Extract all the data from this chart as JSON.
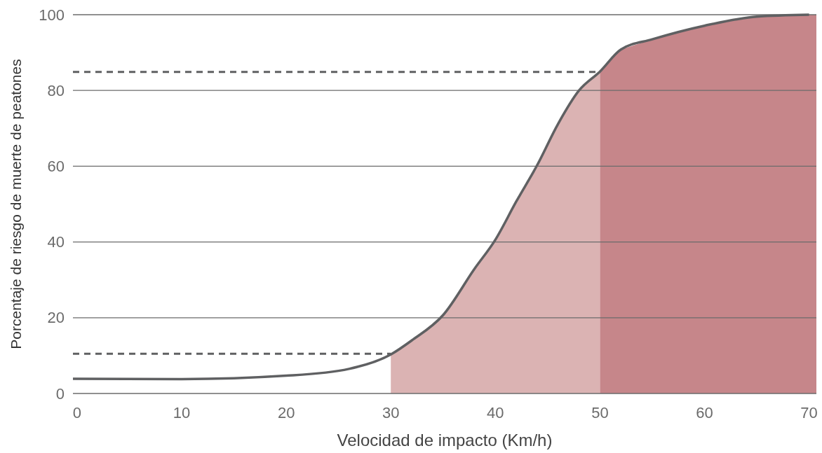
{
  "chart_data": {
    "type": "line",
    "xlabel": "Velocidad de impacto (Km/h)",
    "ylabel": "Porcentaje de riesgo de muerte de peatones",
    "xlim": [
      -0.4,
      70.7
    ],
    "xticks": [
      0,
      10,
      20,
      30,
      40,
      50,
      60,
      70
    ],
    "ylim": [
      0,
      100
    ],
    "yticks": [
      0,
      20,
      40,
      60,
      80,
      100
    ],
    "grid": "y",
    "series": [
      {
        "type": "area",
        "color": "#dbb3b3",
        "x": [
          30,
          32,
          35,
          38,
          40,
          42,
          44,
          46,
          48,
          50
        ],
        "values": [
          10.3,
          14,
          20.7,
          32.9,
          40.6,
          50.7,
          60.3,
          71.2,
          80,
          85
        ]
      },
      {
        "type": "area",
        "color": "#c6868a",
        "x": [
          50,
          52,
          55,
          60,
          65,
          70,
          70.7
        ],
        "values": [
          85,
          90.8,
          93.5,
          97.1,
          99.5,
          100,
          100
        ]
      },
      {
        "type": "line",
        "color": "#5f6062",
        "line_style": "dashed",
        "x": [
          -0.4,
          30
        ],
        "values": [
          10.5,
          10.5
        ]
      },
      {
        "type": "line",
        "color": "#5f6062",
        "line_style": "dashed",
        "x": [
          -0.4,
          49.7
        ],
        "values": [
          84.9,
          84.9
        ]
      },
      {
        "type": "line",
        "color": "#5f6062",
        "line_style": "solid",
        "x": [
          -0.4,
          10,
          20,
          26,
          30,
          32,
          35,
          38,
          40,
          42,
          44,
          46,
          48,
          50,
          52,
          55,
          60,
          65,
          70
        ],
        "values": [
          3.9,
          3.8,
          4.7,
          6.5,
          10.3,
          14,
          20.7,
          32.9,
          40.6,
          50.7,
          60.3,
          71.2,
          80,
          85,
          90.8,
          93.5,
          97.1,
          99.5,
          100
        ]
      }
    ]
  }
}
